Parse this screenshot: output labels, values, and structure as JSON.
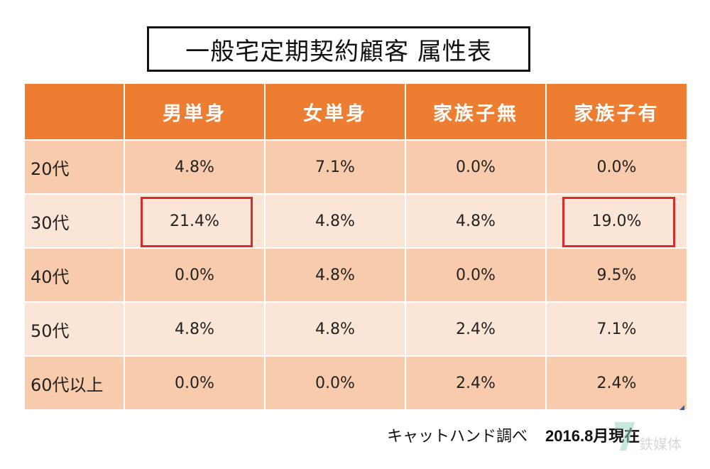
{
  "title": "一般宅定期契約顧客  属性表",
  "table": {
    "headers": [
      "",
      "男単身",
      "女単身",
      "家族子無",
      "家族子有"
    ],
    "rows": [
      {
        "label": "20代",
        "cells": [
          "4.8%",
          "7.1%",
          "0.0%",
          "0.0%"
        ]
      },
      {
        "label": "30代",
        "cells": [
          "21.4%",
          "4.8%",
          "4.8%",
          "19.0%"
        ]
      },
      {
        "label": "40代",
        "cells": [
          "0.0%",
          "4.8%",
          "0.0%",
          "9.5%"
        ]
      },
      {
        "label": "50代",
        "cells": [
          "4.8%",
          "4.8%",
          "2.4%",
          "7.1%"
        ]
      },
      {
        "label": "60代以上",
        "cells": [
          "0.0%",
          "0.0%",
          "2.4%",
          "2.4%"
        ]
      }
    ]
  },
  "footer": {
    "source": "キャットハンド調べ",
    "date": "2016.8月現在"
  },
  "colors": {
    "header": "#ed7d31",
    "row_dark": "#f8cbad",
    "row_light": "#fbe5d6",
    "highlight": "#d92b2b"
  },
  "watermark": "7 鉄媒体"
}
